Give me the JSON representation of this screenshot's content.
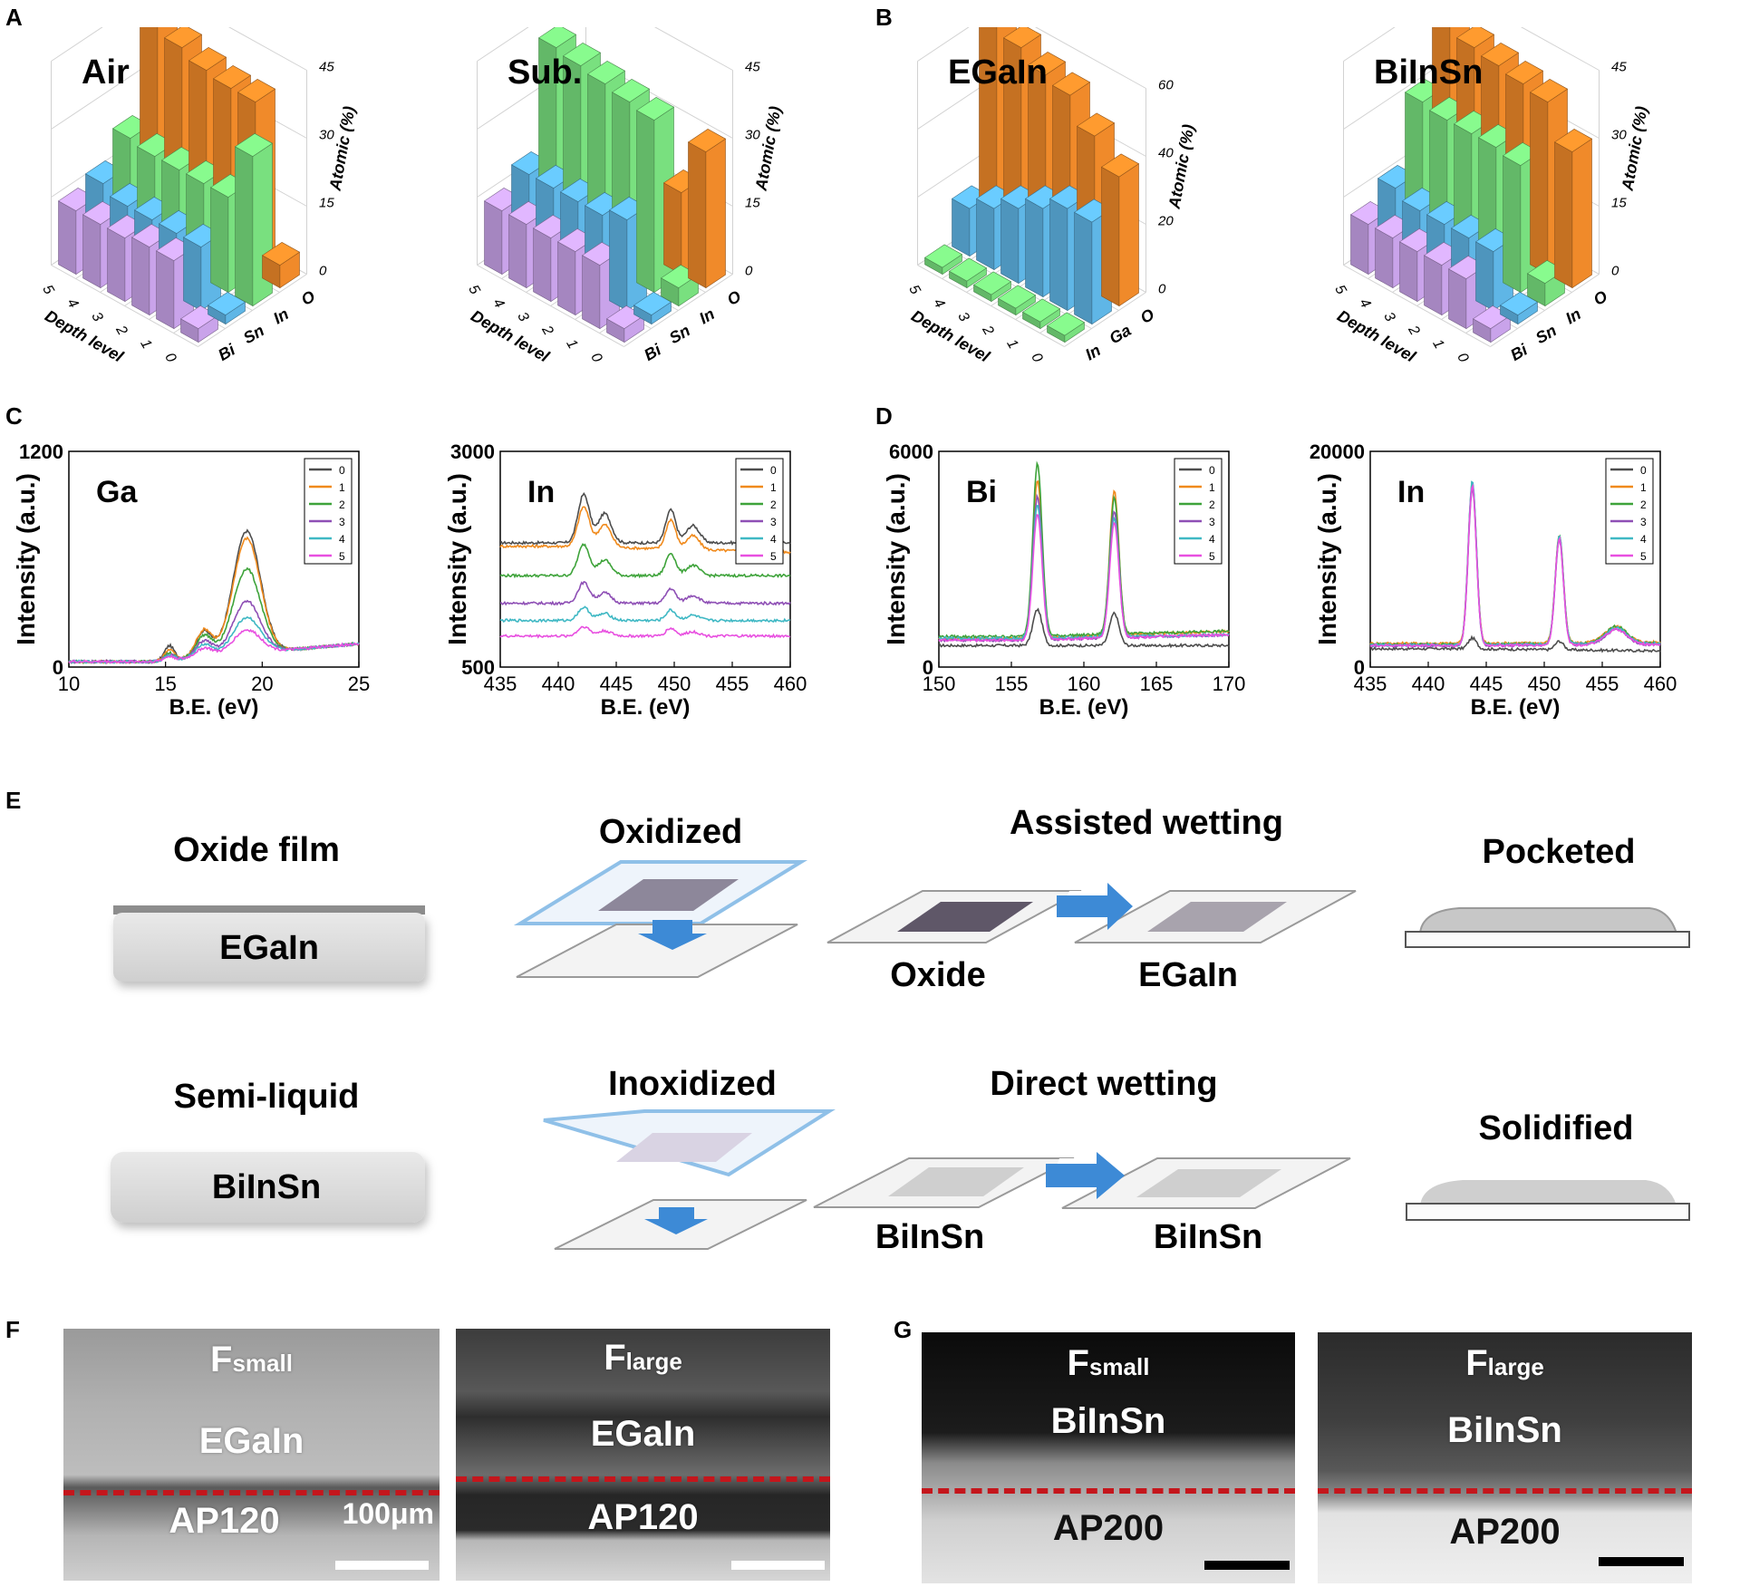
{
  "panels": {
    "A": "A",
    "B": "B",
    "C": "C",
    "D": "D",
    "E": "E",
    "F": "F",
    "G": "G"
  },
  "bar3d": {
    "ylabel": "Atomic (%)",
    "xlabel": "Depth level",
    "depth_ticks": [
      "5",
      "4",
      "3",
      "2",
      "1",
      "0"
    ],
    "colors": {
      "Bi": "#c9a3ea",
      "Sn": "#5fb6e6",
      "In": "#79e07f",
      "O": "#f08a2a",
      "Ga": "#5fb6e6",
      "InB": "#c9a3ea"
    }
  },
  "chart_data": [
    {
      "type": "bar3d",
      "panel": "A",
      "title": "Air",
      "elements": [
        "Bi",
        "Sn",
        "In",
        "O"
      ],
      "depth": [
        0,
        1,
        2,
        3,
        4,
        5
      ],
      "ylim": [
        0,
        45
      ],
      "yticks": [
        "0",
        "15",
        "30",
        "45"
      ],
      "series": [
        {
          "name": "Bi",
          "values": [
            3,
            15,
            15,
            14,
            14,
            14
          ]
        },
        {
          "name": "Sn",
          "values": [
            2,
            14,
            14,
            14,
            14,
            16
          ]
        },
        {
          "name": "In",
          "values": [
            33,
            21,
            21,
            21,
            21,
            22
          ]
        },
        {
          "name": "O",
          "values": [
            5,
            38,
            38,
            39,
            41,
            45
          ]
        }
      ]
    },
    {
      "type": "bar3d",
      "panel": "A",
      "title": "Sub.",
      "elements": [
        "Bi",
        "Sn",
        "In",
        "O"
      ],
      "depth": [
        0,
        1,
        2,
        3,
        4,
        5
      ],
      "ylim": [
        0,
        45
      ],
      "yticks": [
        "0",
        "15",
        "30",
        "45"
      ],
      "series": [
        {
          "name": "Bi",
          "values": [
            3,
            14,
            14,
            14,
            14,
            14
          ]
        },
        {
          "name": "Sn",
          "values": [
            2,
            20,
            18,
            18,
            18,
            18
          ]
        },
        {
          "name": "In",
          "values": [
            4,
            38,
            39,
            40,
            41,
            42
          ]
        },
        {
          "name": "O",
          "values": [
            30,
            18,
            0,
            0,
            0,
            0
          ]
        }
      ]
    },
    {
      "type": "bar3d",
      "panel": "B",
      "title": "EGaIn",
      "elements": [
        "In",
        "Ga",
        "O"
      ],
      "depth": [
        0,
        1,
        2,
        3,
        4,
        5
      ],
      "ylim": [
        0,
        60
      ],
      "yticks": [
        "0",
        "20",
        "40",
        "60"
      ],
      "series": [
        {
          "name": "In",
          "values": [
            2,
            2,
            2,
            2,
            2,
            2
          ]
        },
        {
          "name": "Ga",
          "values": [
            30,
            30,
            26,
            22,
            18,
            14
          ]
        },
        {
          "name": "O",
          "values": [
            38,
            46,
            54,
            56,
            60,
            65
          ]
        }
      ]
    },
    {
      "type": "bar3d",
      "panel": "B",
      "title": "BiInSn",
      "elements": [
        "Bi",
        "Sn",
        "In",
        "O"
      ],
      "depth": [
        0,
        1,
        2,
        3,
        4,
        5
      ],
      "ylim": [
        0,
        45
      ],
      "yticks": [
        "0",
        "15",
        "30",
        "45"
      ],
      "series": [
        {
          "name": "Bi",
          "values": [
            3,
            11,
            11,
            11,
            11,
            11
          ]
        },
        {
          "name": "Sn",
          "values": [
            2,
            13,
            13,
            13,
            13,
            15
          ]
        },
        {
          "name": "In",
          "values": [
            5,
            28,
            29,
            29,
            29,
            30
          ]
        },
        {
          "name": "O",
          "values": [
            30,
            38,
            39,
            40,
            41,
            45
          ]
        }
      ]
    },
    {
      "type": "line",
      "panel": "C",
      "title": "Ga",
      "xlabel": "B.E. (eV)",
      "ylabel": "Intensity (a.u.)",
      "xlim": [
        10,
        25
      ],
      "xticks": [
        "10",
        "15",
        "20",
        "25"
      ],
      "ylim": [
        0,
        1200
      ],
      "yticks": [
        "0",
        "1200"
      ],
      "legend": [
        "0",
        "1",
        "2",
        "3",
        "4",
        "5"
      ],
      "peaks": [
        {
          "x": 15.2,
          "w": 0.35
        },
        {
          "x": 17.0,
          "w": 0.6
        },
        {
          "x": 19.2,
          "w": 1.0
        }
      ],
      "series": [
        {
          "name": "0",
          "base": 30,
          "tail": 130,
          "amps": [
            80,
            140,
            680
          ]
        },
        {
          "name": "1",
          "base": 30,
          "tail": 130,
          "amps": [
            60,
            150,
            640
          ]
        },
        {
          "name": "2",
          "base": 30,
          "tail": 130,
          "amps": [
            40,
            120,
            470
          ]
        },
        {
          "name": "3",
          "base": 30,
          "tail": 130,
          "amps": [
            30,
            90,
            290
          ]
        },
        {
          "name": "4",
          "base": 30,
          "tail": 130,
          "amps": [
            25,
            70,
            200
          ]
        },
        {
          "name": "5",
          "base": 30,
          "tail": 130,
          "amps": [
            20,
            50,
            130
          ]
        }
      ]
    },
    {
      "type": "line",
      "panel": "C",
      "title": "In",
      "xlabel": "B.E. (eV)",
      "ylabel": "Intensity (a.u.)",
      "xlim": [
        435,
        460
      ],
      "xticks": [
        "435",
        "440",
        "445",
        "450",
        "455",
        "460"
      ],
      "ylim": [
        500,
        3000
      ],
      "yticks": [
        "500",
        "3000"
      ],
      "legend": [
        "0",
        "1",
        "2",
        "3",
        "4",
        "5"
      ],
      "peaks": [
        {
          "x": 442.2,
          "w": 0.7
        },
        {
          "x": 444.0,
          "w": 0.8
        },
        {
          "x": 449.7,
          "w": 0.6
        },
        {
          "x": 451.6,
          "w": 0.8
        }
      ],
      "series": [
        {
          "name": "0",
          "base": 1940,
          "tail": 1940,
          "amps": [
            560,
            340,
            380,
            200
          ]
        },
        {
          "name": "1",
          "base": 1900,
          "tail": 1830,
          "amps": [
            460,
            260,
            340,
            160
          ]
        },
        {
          "name": "2",
          "base": 1560,
          "tail": 1560,
          "amps": [
            360,
            180,
            260,
            120
          ]
        },
        {
          "name": "3",
          "base": 1240,
          "tail": 1240,
          "amps": [
            240,
            120,
            170,
            90
          ]
        },
        {
          "name": "4",
          "base": 1040,
          "tail": 1040,
          "amps": [
            150,
            80,
            120,
            60
          ]
        },
        {
          "name": "5",
          "base": 860,
          "tail": 860,
          "amps": [
            110,
            60,
            90,
            50
          ]
        }
      ]
    },
    {
      "type": "line",
      "panel": "D",
      "title": "Bi",
      "xlabel": "B.E. (eV)",
      "ylabel": "Intensity (a.u.)",
      "xlim": [
        150,
        170
      ],
      "xticks": [
        "150",
        "155",
        "160",
        "165",
        "170"
      ],
      "ylim": [
        0,
        6000
      ],
      "yticks": [
        "0",
        "6000"
      ],
      "legend": [
        "0",
        "1",
        "2",
        "3",
        "4",
        "5"
      ],
      "peaks": [
        {
          "x": 156.8,
          "w": 0.45
        },
        {
          "x": 162.1,
          "w": 0.45
        }
      ],
      "series": [
        {
          "name": "0",
          "base": 600,
          "tail": 600,
          "amps": [
            1000,
            900
          ]
        },
        {
          "name": "1",
          "base": 800,
          "tail": 1000,
          "amps": [
            4400,
            4000
          ]
        },
        {
          "name": "2",
          "base": 850,
          "tail": 1000,
          "amps": [
            4800,
            3800
          ]
        },
        {
          "name": "3",
          "base": 750,
          "tail": 900,
          "amps": [
            4000,
            3500
          ]
        },
        {
          "name": "4",
          "base": 800,
          "tail": 900,
          "amps": [
            3700,
            3300
          ]
        },
        {
          "name": "5",
          "base": 750,
          "tail": 900,
          "amps": [
            3500,
            3200
          ]
        }
      ]
    },
    {
      "type": "line",
      "panel": "D",
      "title": "In",
      "xlabel": "B.E. (eV)",
      "ylabel": "Intensity (a.u.)",
      "xlim": [
        435,
        460
      ],
      "xticks": [
        "435",
        "440",
        "445",
        "450",
        "455",
        "460"
      ],
      "ylim": [
        0,
        20000
      ],
      "yticks": [
        "0",
        "20000"
      ],
      "legend": [
        "0",
        "1",
        "2",
        "3",
        "4",
        "5"
      ],
      "peaks": [
        {
          "x": 443.8,
          "w": 0.5
        },
        {
          "x": 451.3,
          "w": 0.5
        },
        {
          "x": 456.2,
          "w": 1.3
        }
      ],
      "series": [
        {
          "name": "0",
          "base": 1700,
          "tail": 1500,
          "amps": [
            1000,
            800,
            0
          ]
        },
        {
          "name": "1",
          "base": 2200,
          "tail": 2300,
          "amps": [
            14800,
            10000,
            1500
          ]
        },
        {
          "name": "2",
          "base": 2100,
          "tail": 2200,
          "amps": [
            15000,
            10000,
            1600
          ]
        },
        {
          "name": "3",
          "base": 2000,
          "tail": 2100,
          "amps": [
            14500,
            9800,
            1400
          ]
        },
        {
          "name": "4",
          "base": 2050,
          "tail": 2200,
          "amps": [
            15200,
            10100,
            1500
          ]
        },
        {
          "name": "5",
          "base": 2000,
          "tail": 2100,
          "amps": [
            14800,
            9900,
            1400
          ]
        }
      ]
    }
  ],
  "line_colors": [
    "#4d4d4d",
    "#f08a1c",
    "#3ea33a",
    "#8e4fb5",
    "#3fb8c4",
    "#e84fe0"
  ],
  "schematic": {
    "row1": {
      "left_title": "Oxide film",
      "left_box": "EGaIn",
      "mid_title": "Oxidized",
      "wet_title": "Assisted wetting",
      "wet_left": "Oxide",
      "wet_right": "EGaIn",
      "right_title": "Pocketed"
    },
    "row2": {
      "left_title": "Semi-liquid",
      "left_box": "BiInSn",
      "mid_title": "Inoxidized",
      "wet_title": "Direct wetting",
      "wet_left": "BiInSn",
      "wet_right": "BiInSn",
      "right_title": "Solidified"
    }
  },
  "micrographs": [
    {
      "top": "F",
      "sub": "small",
      "metal": "EGaIn",
      "substrate": "AP120",
      "scale": "100μm"
    },
    {
      "top": "F",
      "sub": "large",
      "metal": "EGaIn",
      "substrate": "AP120"
    },
    {
      "top": "F",
      "sub": "small",
      "metal": "BiInSn",
      "substrate": "AP200"
    },
    {
      "top": "F",
      "sub": "large",
      "metal": "BiInSn",
      "substrate": "AP200"
    }
  ]
}
